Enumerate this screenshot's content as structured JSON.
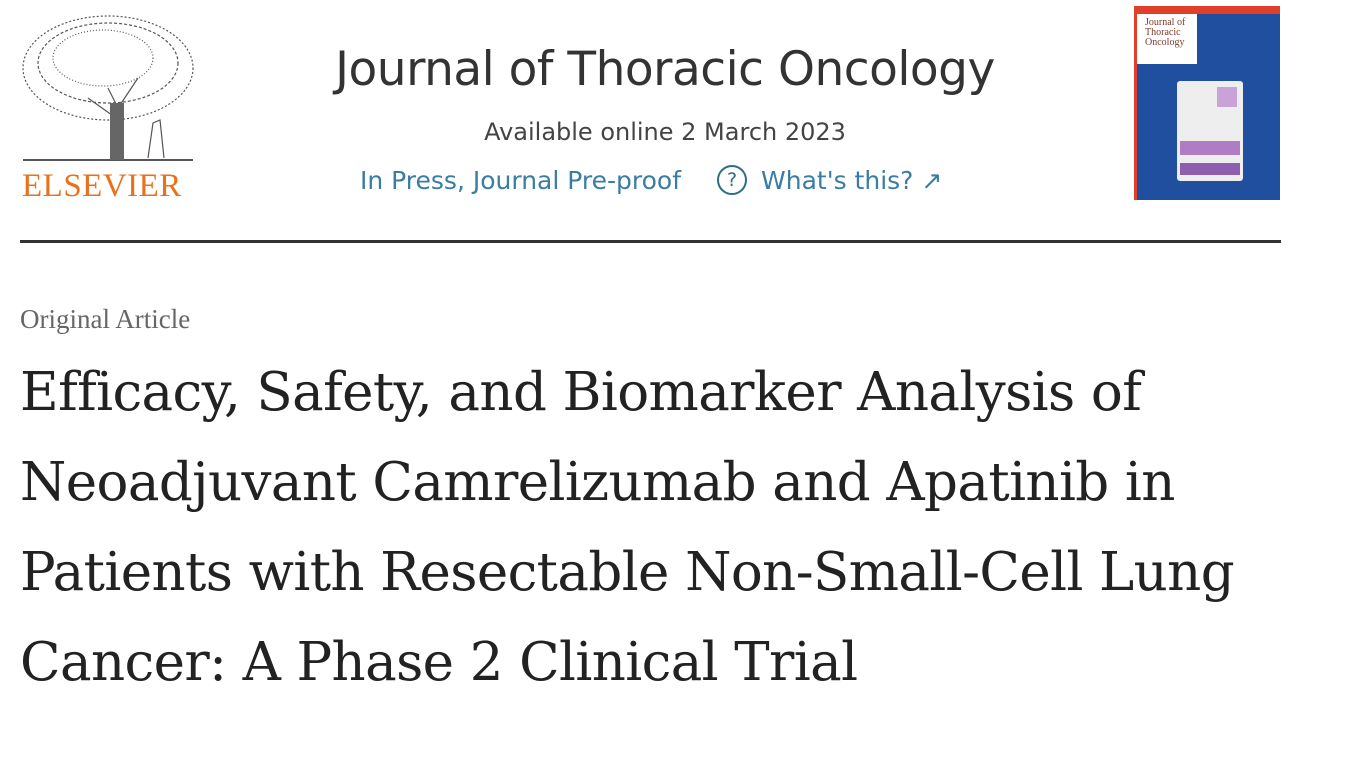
{
  "publisher": {
    "logo_text": "ELSEVIER",
    "brand_color": "#e9711c"
  },
  "journal": {
    "title": "Journal of Thoracic Oncology",
    "available": "Available online 2 March 2023",
    "status": "In Press, Journal Pre-proof",
    "help_icon": "question-circle-icon",
    "help_link": "What's this? ↗",
    "link_color": "#3a7da3",
    "cover_text": "Journal of Thoracic Oncology"
  },
  "article": {
    "type": "Original Article",
    "title": "Efficacy, Safety, and Biomarker Analysis of Neoadjuvant Camrelizumab and Apatinib in Patients with Resectable Non-Small-Cell Lung Cancer: A Phase 2 Clinical Trial"
  }
}
